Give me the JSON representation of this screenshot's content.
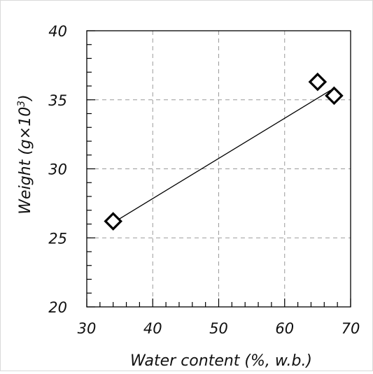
{
  "chart_data": {
    "type": "scatter",
    "title": "",
    "xlabel": "Water content (%, w.b.)",
    "ylabel_main": "Weight (g×10",
    "ylabel_exp": "3",
    "ylabel_close": ")",
    "xlim": [
      30,
      70
    ],
    "ylim": [
      20,
      40
    ],
    "x_ticks": [
      30,
      40,
      50,
      60,
      70
    ],
    "y_ticks": [
      20,
      25,
      30,
      35,
      40
    ],
    "grid": true,
    "marker": "diamond-open",
    "points": [
      {
        "x": 34,
        "y": 26.2
      },
      {
        "x": 65,
        "y": 36.3
      },
      {
        "x": 67.5,
        "y": 35.3
      }
    ],
    "fit_line": {
      "x": [
        34,
        67
      ],
      "y": [
        26.1,
        35.7
      ]
    },
    "colors": {
      "marker": "#000000",
      "line": "#000000",
      "grid": "#9a9a9a"
    }
  }
}
